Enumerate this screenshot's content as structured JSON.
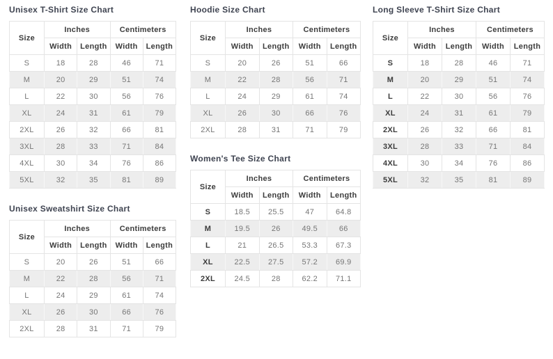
{
  "colors": {
    "title": "#3f4451",
    "header_text": "#3c3c3c",
    "cell_text": "#767676",
    "stripe": "#ededed",
    "border": "#e4e4e4",
    "background": "#ffffff"
  },
  "table_headers": {
    "size": "Size",
    "inches": "Inches",
    "centimeters": "Centimeters",
    "width": "Width",
    "length": "Length"
  },
  "charts": [
    {
      "id": "unisex-tshirt",
      "title": "Unisex T-Shirt Size Chart",
      "bold_sizes": false,
      "rows": [
        [
          "S",
          "18",
          "28",
          "46",
          "71"
        ],
        [
          "M",
          "20",
          "29",
          "51",
          "74"
        ],
        [
          "L",
          "22",
          "30",
          "56",
          "76"
        ],
        [
          "XL",
          "24",
          "31",
          "61",
          "79"
        ],
        [
          "2XL",
          "26",
          "32",
          "66",
          "81"
        ],
        [
          "3XL",
          "28",
          "33",
          "71",
          "84"
        ],
        [
          "4XL",
          "30",
          "34",
          "76",
          "86"
        ],
        [
          "5XL",
          "32",
          "35",
          "81",
          "89"
        ]
      ]
    },
    {
      "id": "unisex-sweatshirt",
      "title": "Unisex Sweatshirt Size Chart",
      "bold_sizes": false,
      "rows": [
        [
          "S",
          "20",
          "26",
          "51",
          "66"
        ],
        [
          "M",
          "22",
          "28",
          "56",
          "71"
        ],
        [
          "L",
          "24",
          "29",
          "61",
          "74"
        ],
        [
          "XL",
          "26",
          "30",
          "66",
          "76"
        ],
        [
          "2XL",
          "28",
          "31",
          "71",
          "79"
        ]
      ]
    },
    {
      "id": "hoodie",
      "title": "Hoodie Size Chart",
      "bold_sizes": false,
      "rows": [
        [
          "S",
          "20",
          "26",
          "51",
          "66"
        ],
        [
          "M",
          "22",
          "28",
          "56",
          "71"
        ],
        [
          "L",
          "24",
          "29",
          "61",
          "74"
        ],
        [
          "XL",
          "26",
          "30",
          "66",
          "76"
        ],
        [
          "2XL",
          "28",
          "31",
          "71",
          "79"
        ]
      ]
    },
    {
      "id": "womens-tee",
      "title": "Women's Tee Size Chart",
      "bold_sizes": true,
      "rows": [
        [
          "S",
          "18.5",
          "25.5",
          "47",
          "64.8"
        ],
        [
          "M",
          "19.5",
          "26",
          "49.5",
          "66"
        ],
        [
          "L",
          "21",
          "26.5",
          "53.3",
          "67.3"
        ],
        [
          "XL",
          "22.5",
          "27.5",
          "57.2",
          "69.9"
        ],
        [
          "2XL",
          "24.5",
          "28",
          "62.2",
          "71.1"
        ]
      ]
    },
    {
      "id": "long-sleeve-tshirt",
      "title": "Long Sleeve T-Shirt Size Chart",
      "bold_sizes": true,
      "rows": [
        [
          "S",
          "18",
          "28",
          "46",
          "71"
        ],
        [
          "M",
          "20",
          "29",
          "51",
          "74"
        ],
        [
          "L",
          "22",
          "30",
          "56",
          "76"
        ],
        [
          "XL",
          "24",
          "31",
          "61",
          "79"
        ],
        [
          "2XL",
          "26",
          "32",
          "66",
          "81"
        ],
        [
          "3XL",
          "28",
          "33",
          "71",
          "84"
        ],
        [
          "4XL",
          "30",
          "34",
          "76",
          "86"
        ],
        [
          "5XL",
          "32",
          "35",
          "81",
          "89"
        ]
      ]
    }
  ]
}
